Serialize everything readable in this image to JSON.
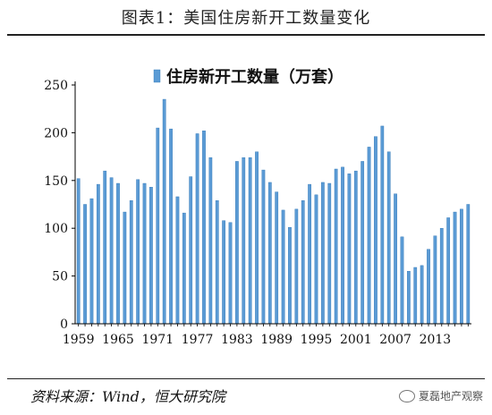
{
  "title": "图表1：美国住房新开工数量变化",
  "source": "资料来源：Wind，恒大研究院",
  "watermark": {
    "text": "夏磊地产观察",
    "icon": "wechat-icon"
  },
  "colors": {
    "bar": "#5b9bd5",
    "bar_edge": "#2e75b6",
    "axis": "#000000"
  },
  "chart_data": {
    "type": "bar",
    "x": [
      1959,
      1960,
      1961,
      1962,
      1963,
      1964,
      1965,
      1966,
      1967,
      1968,
      1969,
      1970,
      1971,
      1972,
      1973,
      1974,
      1975,
      1976,
      1977,
      1978,
      1979,
      1980,
      1981,
      1982,
      1983,
      1984,
      1985,
      1986,
      1987,
      1988,
      1989,
      1990,
      1991,
      1992,
      1993,
      1994,
      1995,
      1996,
      1997,
      1998,
      1999,
      2000,
      2001,
      2002,
      2003,
      2004,
      2005,
      2006,
      2007,
      2008,
      2009,
      2010,
      2011,
      2012,
      2013,
      2014,
      2015,
      2016,
      2017,
      2018
    ],
    "series": [
      {
        "name": "住房新开工数量（万套）",
        "values": [
          152,
          125,
          131,
          146,
          160,
          153,
          147,
          117,
          129,
          151,
          147,
          143,
          205,
          235,
          204,
          133,
          116,
          154,
          199,
          202,
          174,
          129,
          108,
          106,
          170,
          174,
          174,
          180,
          161,
          148,
          138,
          119,
          101,
          120,
          129,
          146,
          135,
          148,
          147,
          162,
          164,
          157,
          160,
          170,
          185,
          196,
          207,
          180,
          136,
          91,
          55,
          59,
          61,
          78,
          92,
          100,
          111,
          117,
          120,
          125
        ]
      }
    ],
    "xticks": [
      1959,
      1965,
      1971,
      1977,
      1983,
      1989,
      1995,
      2001,
      2007,
      2013
    ],
    "ylim": [
      0,
      250
    ],
    "yticks": [
      0,
      50,
      100,
      150,
      200,
      250
    ],
    "legend": "top",
    "grid": false
  }
}
